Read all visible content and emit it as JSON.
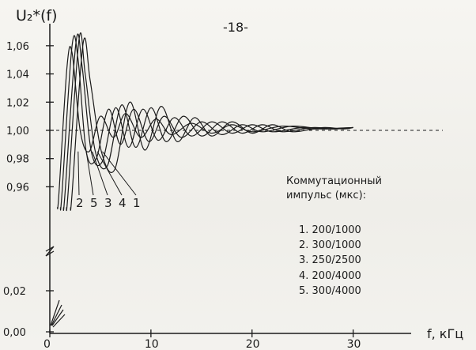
{
  "page_number": "-18-",
  "chart_data": {
    "type": "line",
    "ylabel": "U₂*(f)",
    "xlabel": "f, кГц",
    "xlim": [
      0,
      33
    ],
    "ylim": [
      0.93,
      1.07
    ],
    "x_ticks": [
      {
        "value": 0,
        "label": "0"
      },
      {
        "value": 10,
        "label": "10"
      },
      {
        "value": 20,
        "label": "20"
      },
      {
        "value": 30,
        "label": "30"
      }
    ],
    "y_ticks": [
      {
        "value": 1.06,
        "label": "1,06"
      },
      {
        "value": 1.04,
        "label": "1,04"
      },
      {
        "value": 1.02,
        "label": "1,02"
      },
      {
        "value": 1.0,
        "label": "1,00"
      },
      {
        "value": 0.98,
        "label": "0,98"
      },
      {
        "value": 0.96,
        "label": "0,96"
      }
    ],
    "lower_ticks": [
      {
        "value": 0.02,
        "label": "0,02"
      },
      {
        "value": 0.0,
        "label": "0,00"
      }
    ],
    "curve_labels": [
      "2",
      "5",
      "3",
      "4",
      "1"
    ],
    "legend": {
      "title_line1": "Коммутационный",
      "title_line2": "импульс (мкс):",
      "items": [
        "1.   200/1000",
        "2.   300/1000",
        "3.   250/2500",
        "4.   200/4000",
        "5.   300/4000"
      ]
    },
    "series": [
      {
        "values": [
          [
            0.9,
            0.955
          ],
          [
            1.7,
            1.045
          ],
          [
            2.2,
            1.055
          ],
          [
            3.0,
            1.0
          ],
          [
            3.9,
            0.985
          ],
          [
            5.0,
            1.01
          ],
          [
            6.3,
            0.995
          ],
          [
            7.5,
            1.012
          ],
          [
            9,
            0.995
          ],
          [
            10.5,
            1.008
          ],
          [
            12,
            0.997
          ],
          [
            14,
            1.005
          ],
          [
            16,
            0.998
          ],
          [
            18,
            1.004
          ],
          [
            20,
            0.999
          ],
          [
            23,
            1.003
          ],
          [
            26,
            1.001
          ],
          [
            30,
            1.002
          ]
        ]
      },
      {
        "values": [
          [
            1.2,
            0.955
          ],
          [
            2.2,
            1.06
          ],
          [
            2.8,
            1.05
          ],
          [
            3.6,
            0.985
          ],
          [
            4.6,
            0.98
          ],
          [
            5.8,
            1.015
          ],
          [
            7.0,
            0.99
          ],
          [
            8.3,
            1.015
          ],
          [
            9.8,
            0.992
          ],
          [
            11.3,
            1.01
          ],
          [
            13,
            0.995
          ],
          [
            15,
            1.006
          ],
          [
            17,
            0.997
          ],
          [
            19,
            1.004
          ],
          [
            21,
            0.999
          ],
          [
            24,
            1.003
          ],
          [
            27,
            1.001
          ],
          [
            30,
            1.002
          ]
        ]
      },
      {
        "values": [
          [
            1.5,
            0.955
          ],
          [
            2.6,
            1.063
          ],
          [
            3.2,
            1.045
          ],
          [
            4.1,
            0.985
          ],
          [
            5.2,
            0.978
          ],
          [
            6.5,
            1.016
          ],
          [
            7.8,
            0.988
          ],
          [
            9.2,
            1.015
          ],
          [
            10.7,
            0.993
          ],
          [
            12.3,
            1.009
          ],
          [
            14,
            0.996
          ],
          [
            16,
            1.006
          ],
          [
            18,
            0.998
          ],
          [
            20,
            1.004
          ],
          [
            22,
            0.999
          ],
          [
            25,
            1.002
          ],
          [
            28,
            1.001
          ],
          [
            30,
            1.002
          ]
        ]
      },
      {
        "values": [
          [
            1.8,
            0.955
          ],
          [
            2.9,
            1.065
          ],
          [
            3.5,
            1.04
          ],
          [
            4.5,
            0.985
          ],
          [
            5.7,
            0.975
          ],
          [
            7.1,
            1.018
          ],
          [
            8.5,
            0.988
          ],
          [
            10.0,
            1.016
          ],
          [
            11.5,
            0.992
          ],
          [
            13.2,
            1.01
          ],
          [
            15,
            0.996
          ],
          [
            17,
            1.006
          ],
          [
            19,
            0.998
          ],
          [
            21,
            1.004
          ],
          [
            23,
            0.999
          ],
          [
            26,
            1.002
          ],
          [
            28,
            1.001
          ],
          [
            30,
            1.002
          ]
        ]
      },
      {
        "values": [
          [
            2.2,
            0.955
          ],
          [
            3.3,
            1.062
          ],
          [
            4.0,
            1.035
          ],
          [
            5.1,
            0.985
          ],
          [
            6.4,
            0.972
          ],
          [
            7.9,
            1.02
          ],
          [
            9.4,
            0.986
          ],
          [
            11.0,
            1.017
          ],
          [
            12.6,
            0.992
          ],
          [
            14.3,
            1.009
          ],
          [
            16,
            0.996
          ],
          [
            18,
            1.006
          ],
          [
            20,
            0.998
          ],
          [
            22,
            1.004
          ],
          [
            24,
            0.999
          ],
          [
            27,
            1.002
          ],
          [
            29,
            1.001
          ],
          [
            30,
            1.002
          ]
        ]
      }
    ]
  }
}
